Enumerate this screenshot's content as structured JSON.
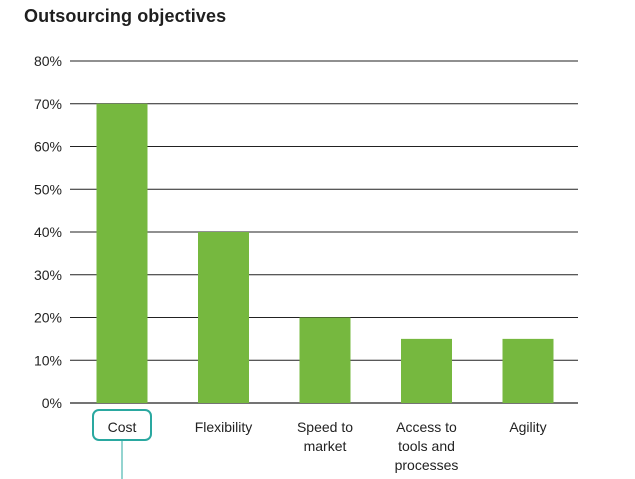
{
  "chart_data": {
    "type": "bar",
    "title": "Outsourcing objectives",
    "xlabel": "",
    "ylabel": "",
    "categories": [
      "Cost",
      "Flexibility",
      "Speed to market",
      "Access to tools and processes",
      "Agility"
    ],
    "category_lines": [
      [
        "Cost"
      ],
      [
        "Flexibility"
      ],
      [
        "Speed to",
        "market"
      ],
      [
        "Access to",
        "tools and",
        "processes"
      ],
      [
        "Agility"
      ]
    ],
    "values": [
      70,
      40,
      20,
      15,
      15
    ],
    "ylim": [
      0,
      80
    ],
    "yticks": [
      0,
      10,
      20,
      30,
      40,
      50,
      60,
      70,
      80
    ],
    "ytick_labels": [
      "0%",
      "10%",
      "20%",
      "30%",
      "40%",
      "50%",
      "60%",
      "70%",
      "80%"
    ],
    "grid": true,
    "legend": "none",
    "highlighted_category": "Cost",
    "colors": {
      "bar": "#76b83f",
      "grid": "#222222",
      "highlight": "#2aa8a0"
    }
  }
}
